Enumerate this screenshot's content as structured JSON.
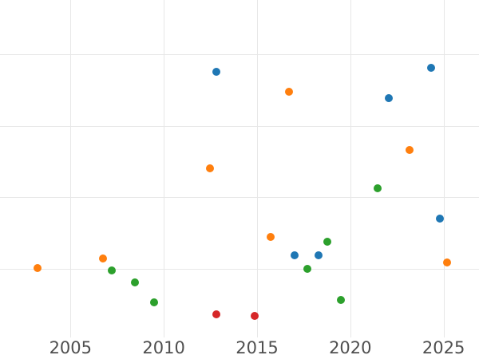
{
  "figure": {
    "background_color": "#ffffff",
    "grid_color": "#e7e7e7",
    "tick_label_color": "#4f4f4f"
  },
  "chart_data": {
    "type": "scatter",
    "title": "",
    "xlabel": "",
    "ylabel": "",
    "grid": true,
    "legend": "none",
    "xlim": [
      2001.22,
      2026.9
    ],
    "ylim": [
      0.038,
      4.757
    ],
    "x_ticks": [
      {
        "value": 2005,
        "label": "2005"
      },
      {
        "value": 2010,
        "label": "2010"
      },
      {
        "value": 2015,
        "label": "2015"
      },
      {
        "value": 2020,
        "label": "2020"
      },
      {
        "value": 2025,
        "label": "2025"
      }
    ],
    "y_gridline_values": [
      1,
      2,
      3,
      4
    ],
    "y_tick_labels_visible": false,
    "series": [
      {
        "name": "series-blue",
        "color": "#1f77b4",
        "points": [
          {
            "x": 2012.82,
            "y": 3.75
          },
          {
            "x": 2017.03,
            "y": 1.19
          },
          {
            "x": 2018.31,
            "y": 1.19
          },
          {
            "x": 2022.05,
            "y": 3.39
          },
          {
            "x": 2024.34,
            "y": 3.81
          },
          {
            "x": 2024.81,
            "y": 1.7
          }
        ]
      },
      {
        "name": "series-orange",
        "color": "#ff7f0e",
        "points": [
          {
            "x": 2003.22,
            "y": 1.01
          },
          {
            "x": 2006.74,
            "y": 1.14
          },
          {
            "x": 2012.47,
            "y": 2.4
          },
          {
            "x": 2015.74,
            "y": 1.45
          },
          {
            "x": 2016.73,
            "y": 3.47
          },
          {
            "x": 2023.17,
            "y": 2.66
          },
          {
            "x": 2025.19,
            "y": 1.09
          }
        ]
      },
      {
        "name": "series-green",
        "color": "#2ca02c",
        "points": [
          {
            "x": 2007.21,
            "y": 0.98
          },
          {
            "x": 2008.47,
            "y": 0.81
          },
          {
            "x": 2009.49,
            "y": 0.53
          },
          {
            "x": 2017.71,
            "y": 1.0
          },
          {
            "x": 2018.77,
            "y": 1.38
          },
          {
            "x": 2019.5,
            "y": 0.57
          },
          {
            "x": 2021.48,
            "y": 2.13
          }
        ]
      },
      {
        "name": "series-red",
        "color": "#d62728",
        "points": [
          {
            "x": 2012.82,
            "y": 0.36
          },
          {
            "x": 2014.88,
            "y": 0.34
          }
        ]
      }
    ]
  }
}
